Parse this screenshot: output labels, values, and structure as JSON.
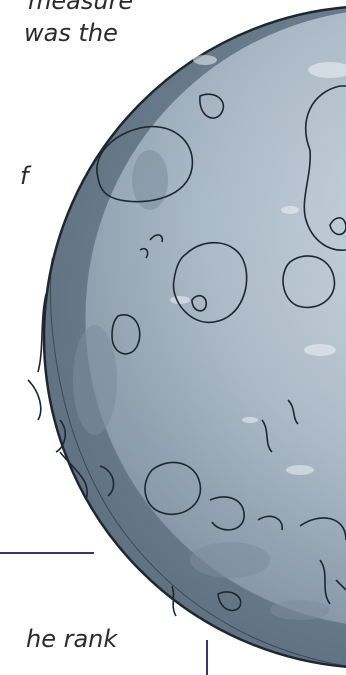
{
  "text_fragments": {
    "line_1": "measure",
    "line_2": "was the",
    "line_3": "f",
    "line_4": "he rank"
  },
  "colors": {
    "moon_outer": "#6e7f90",
    "moon_inner": "#a8b6c4",
    "moon_highlight": "#cfd9e2",
    "outline": "#1e2730",
    "frame_line": "#3c3270",
    "text": "#2b2b2b"
  },
  "illustration": {
    "subject": "moon-illustration"
  }
}
